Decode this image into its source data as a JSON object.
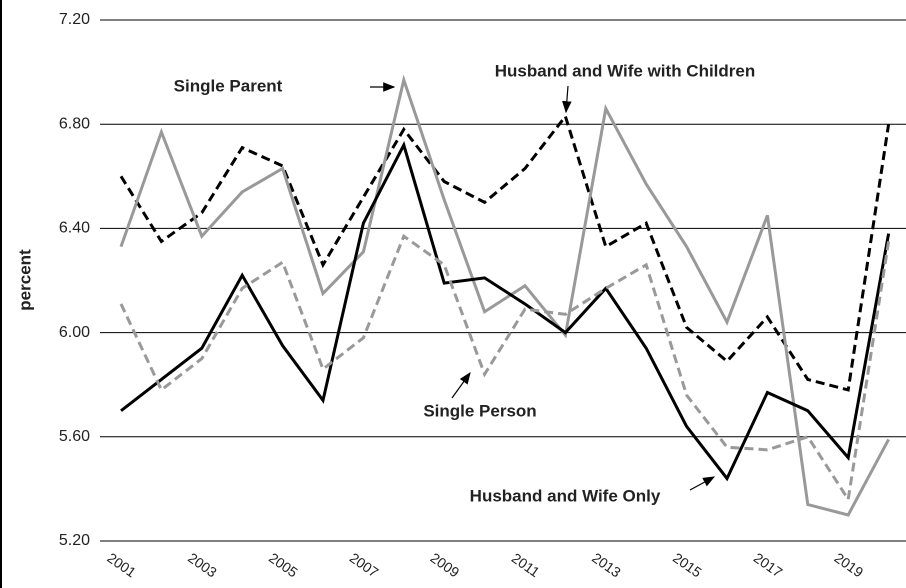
{
  "chart_data": {
    "type": "line",
    "y_label": "percent",
    "categories": [
      "2001",
      null,
      "2003",
      null,
      "2005",
      null,
      "2007",
      null,
      "2009",
      null,
      "2011",
      null,
      "2013",
      null,
      "2015",
      null,
      "2017",
      null,
      "2019",
      null
    ],
    "series": [
      {
        "name": "Husband and Wife with Children",
        "color": "#000000",
        "dash": true,
        "values": [
          6.6,
          6.35,
          6.46,
          6.71,
          6.64,
          6.26,
          6.52,
          6.78,
          6.58,
          6.5,
          6.63,
          6.83,
          6.33,
          6.42,
          6.02,
          5.89,
          6.06,
          5.82,
          5.78,
          6.8
        ]
      },
      {
        "name": "Single Parent",
        "color": "#999999",
        "dash": false,
        "values": [
          6.33,
          6.77,
          6.37,
          6.54,
          6.63,
          6.15,
          6.31,
          6.97,
          6.51,
          6.08,
          6.18,
          5.99,
          6.86,
          6.57,
          6.33,
          6.04,
          6.45,
          5.34,
          5.3,
          5.59
        ]
      },
      {
        "name": "Husband and Wife Only",
        "color": "#000000",
        "dash": false,
        "values": [
          5.7,
          5.82,
          5.94,
          6.22,
          5.95,
          5.74,
          6.42,
          6.72,
          6.19,
          6.21,
          6.11,
          6.0,
          6.17,
          5.94,
          5.64,
          5.44,
          5.77,
          5.7,
          5.52,
          6.38
        ]
      },
      {
        "name": "Single Person",
        "color": "#999999",
        "dash": true,
        "values": [
          6.11,
          5.78,
          5.9,
          6.17,
          6.27,
          5.86,
          5.98,
          6.37,
          6.26,
          5.84,
          6.09,
          6.07,
          6.17,
          6.26,
          5.76,
          5.56,
          5.55,
          5.6,
          5.36,
          6.35
        ]
      }
    ],
    "ylim": [
      5.2,
      7.2
    ],
    "yticks": [
      {
        "value": 5.2,
        "label": "5.20"
      },
      {
        "value": 5.6,
        "label": "5.60"
      },
      {
        "value": 6.0,
        "label": "6.00"
      },
      {
        "value": 6.4,
        "label": "6.40"
      },
      {
        "value": 6.8,
        "label": "6.80"
      },
      {
        "value": 7.2,
        "label": "7.20"
      }
    ],
    "grid": true
  }
}
